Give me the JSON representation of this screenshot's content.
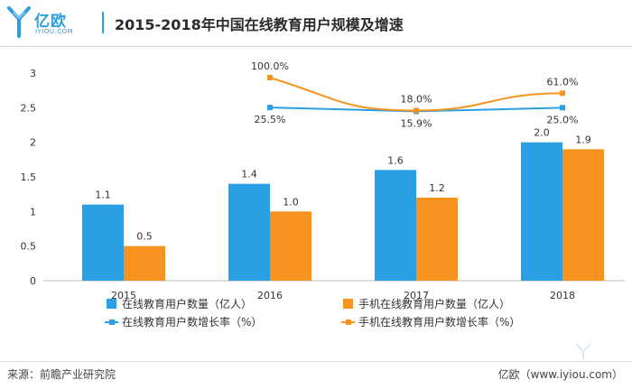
{
  "header": {
    "logo_text": "亿欧",
    "logo_sub": "IYIOU.COM",
    "title": "2015-2018年中国在线教育用户规模及增速"
  },
  "footer": {
    "source": "来源：前瞻产业研究院",
    "brand": "亿欧（www.iyiou.com）"
  },
  "chart_data": {
    "type": "bar",
    "categories": [
      "2015",
      "2016",
      "2017",
      "2018"
    ],
    "ylim": [
      0,
      3
    ],
    "yticks": [
      "0",
      "0.5",
      "1",
      "1.5",
      "2",
      "2.5",
      "3"
    ],
    "grid": false,
    "legend_position": "bottom",
    "colors": {
      "blue": "#2b9fe3",
      "orange": "#f7931e"
    },
    "bar_series": [
      {
        "name": "在线教育用户数量（亿人）",
        "values": [
          1.1,
          1.4,
          1.6,
          2.0
        ],
        "labels": [
          "1.1",
          "1.4",
          "1.6",
          "2.0"
        ]
      },
      {
        "name": "手机在线教育用户数量（亿人）",
        "values": [
          0.5,
          1.0,
          1.2,
          1.9
        ],
        "labels": [
          "0.5",
          "1.0",
          "1.2",
          "1.9"
        ]
      }
    ],
    "line_series": [
      {
        "name": "在线教育用户数增长率（%）",
        "x": [
          "2016",
          "2017",
          "2018"
        ],
        "values": [
          25.5,
          15.9,
          25.0
        ],
        "labels": [
          "25.5%",
          "15.9%",
          "25.0%"
        ]
      },
      {
        "name": "手机在线教育用户数增长率（%）",
        "x": [
          "2016",
          "2017",
          "2018"
        ],
        "values": [
          100.0,
          18.0,
          61.0
        ],
        "labels": [
          "100.0%",
          "18.0%",
          "61.0%"
        ]
      }
    ]
  }
}
